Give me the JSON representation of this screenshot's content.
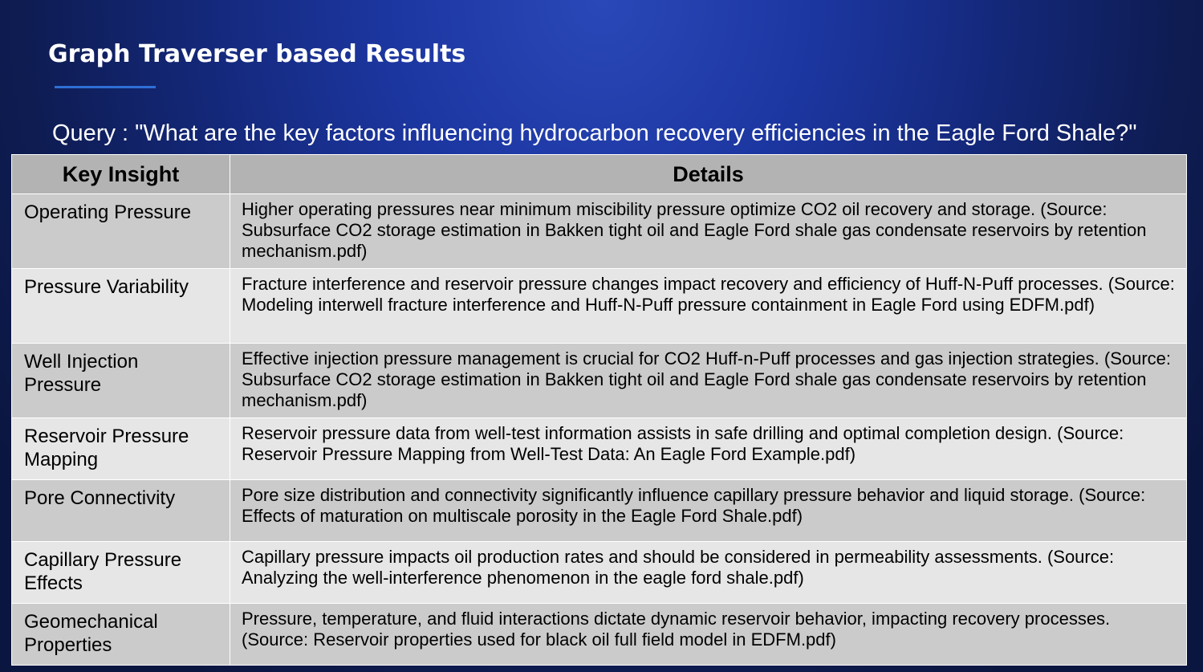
{
  "slide": {
    "title": "Graph Traverser based Results",
    "query": "Query : \"What are the key factors influencing hydrocarbon recovery efficiencies in the Eagle Ford Shale?\""
  },
  "table": {
    "headers": {
      "insight": "Key Insight",
      "details": "Details"
    },
    "rows": [
      {
        "insight": "Operating Pressure",
        "details": "Higher operating pressures near minimum miscibility pressure optimize CO2 oil recovery and storage. (Source: Subsurface CO2 storage estimation in Bakken tight oil and Eagle Ford shale gas condensate reservoirs by retention mechanism.pdf)"
      },
      {
        "insight": "Pressure Variability",
        "details": "Fracture interference and reservoir pressure changes impact recovery and efficiency of Huff-N-Puff processes. (Source: Modeling interwell fracture interference and Huff-N-Puff pressure containment in Eagle Ford using EDFM.pdf)"
      },
      {
        "insight": "Well Injection Pressure",
        "details": "Effective injection pressure management is crucial for CO2 Huff-n-Puff processes and gas injection strategies. (Source: Subsurface CO2 storage estimation in Bakken tight oil and Eagle Ford shale gas condensate reservoirs by retention mechanism.pdf)"
      },
      {
        "insight": "Reservoir Pressure Mapping",
        "details": "Reservoir pressure data from well-test information assists in safe drilling and optimal completion design. (Source: Reservoir Pressure Mapping from Well-Test Data: An Eagle Ford Example.pdf)"
      },
      {
        "insight": "Pore Connectivity",
        "details": "Pore size distribution and connectivity significantly influence capillary pressure behavior and liquid storage. (Source: Effects of maturation on multiscale porosity in the Eagle Ford Shale.pdf)"
      },
      {
        "insight": "Capillary Pressure Effects",
        "details": "Capillary pressure impacts oil production rates and should be considered in permeability assessments. (Source: Analyzing the well-interference phenomenon in the eagle ford shale.pdf)"
      },
      {
        "insight": "Geomechanical Properties",
        "details": "Pressure, temperature, and fluid interactions dictate dynamic reservoir behavior, impacting recovery processes. (Source: Reservoir properties used for black oil full field model in EDFM.pdf)"
      }
    ]
  }
}
